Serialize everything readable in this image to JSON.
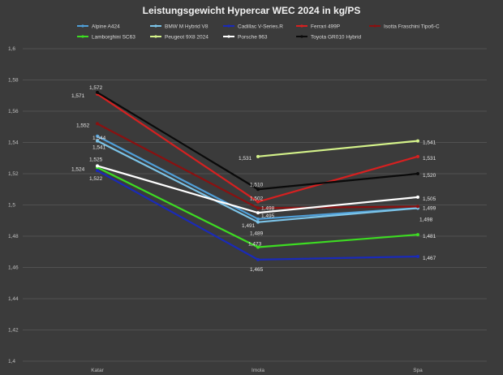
{
  "chart_data": {
    "type": "line",
    "title": "Leistungsgewicht Hypercar WEC 2024 in kg/PS",
    "xlabel": "",
    "ylabel": "",
    "categories": [
      "Katar",
      "Imola",
      "Spa"
    ],
    "ylim": [
      1.4,
      1.6
    ],
    "yticks": [
      1.4,
      1.42,
      1.44,
      1.46,
      1.48,
      1.5,
      1.52,
      1.54,
      1.56,
      1.58,
      1.6
    ],
    "ytick_labels": [
      "1,4",
      "1,42",
      "1,44",
      "1,46",
      "1,48",
      "1,5",
      "1,52",
      "1,54",
      "1,56",
      "1,58",
      "1,6"
    ],
    "grid": true,
    "legend_position": "top",
    "series": [
      {
        "name": "Alpine A424",
        "color": "#4f9fd8",
        "values": [
          1.544,
          1.491,
          1.498
        ],
        "labels": [
          "1,544",
          "1,491",
          "1,498"
        ]
      },
      {
        "name": "BMW M Hybrid V8",
        "color": "#7cc4e8",
        "values": [
          1.541,
          1.489,
          1.498
        ],
        "labels": [
          "1,541",
          "1,489",
          ""
        ]
      },
      {
        "name": "Cadillac V-Series.R",
        "color": "#1a2ab8",
        "values": [
          1.522,
          1.465,
          1.467
        ],
        "labels": [
          "1,522",
          "1,465",
          "1,467"
        ]
      },
      {
        "name": "Ferrari 499P",
        "color": "#d62020",
        "values": [
          1.571,
          1.502,
          1.531
        ],
        "labels": [
          "1,571",
          "1,502",
          "1,531"
        ]
      },
      {
        "name": "Isotta Fraschini Tipo6-C",
        "color": "#8b1010",
        "values": [
          1.552,
          1.498,
          1.499
        ],
        "labels": [
          "1,552",
          "1,498",
          "1,499"
        ]
      },
      {
        "name": "Lamborghini SC63",
        "color": "#3ddc22",
        "values": [
          1.524,
          1.473,
          1.481
        ],
        "labels": [
          "1,524",
          "1,473",
          "1,481"
        ]
      },
      {
        "name": "Peugeot 9X8 2024",
        "color": "#d4f28a",
        "values": [
          null,
          1.531,
          1.541
        ],
        "labels": [
          "",
          "1,531",
          "1,541"
        ]
      },
      {
        "name": "Porsche 963",
        "color": "#ffffff",
        "values": [
          1.525,
          1.495,
          1.505
        ],
        "labels": [
          "1,525",
          "1,495",
          "1,505"
        ]
      },
      {
        "name": "Toyota GR010 Hybrid",
        "color": "#0a0a0a",
        "values": [
          1.572,
          1.51,
          1.52
        ],
        "labels": [
          "1,572",
          "1,510",
          "1,520"
        ]
      }
    ]
  }
}
